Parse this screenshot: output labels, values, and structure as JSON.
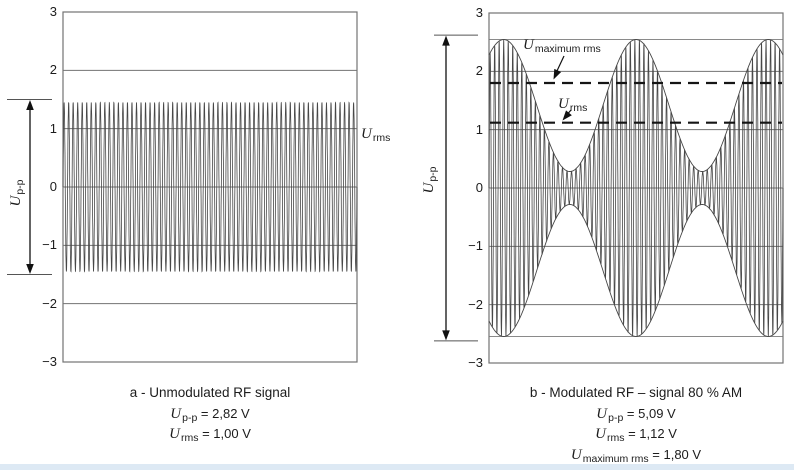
{
  "figure_colors": {
    "background": "#ffffff",
    "waveform": "#474747",
    "gridline": "#737373",
    "tangent_line": "#8a8a8a",
    "dashed_marker": "#151515",
    "arrow": "#111111",
    "text": "#1c1c1c",
    "bottom_strip": "#dde9f4"
  },
  "left_panel": {
    "upp_axis_label": {
      "sym": "U",
      "sub": "p-p"
    },
    "urms_marker": {
      "sym": "U",
      "sub": "rms"
    },
    "caption": "a - Unmodulated RF signal",
    "upp_value": {
      "sym": "U",
      "sub": "p-p",
      "rest": " = 2,82 V"
    },
    "urms_value": {
      "sym": "U",
      "sub": "rms",
      "rest": " = 1,00 V"
    }
  },
  "right_panel": {
    "upp_axis_label": {
      "sym": "U",
      "sub": "p-p"
    },
    "umaxrms_marker": {
      "sym": "U",
      "sub": "maximum rms"
    },
    "urms_marker": {
      "sym": "U",
      "sub": "rms"
    },
    "caption": "b  - Modulated RF – signal 80 % AM",
    "upp_value": {
      "sym": "U",
      "sub": "p-p",
      "rest": " = 5,09 V"
    },
    "urms_value": {
      "sym": "U",
      "sub": "rms",
      "rest": " = 1,12 V"
    },
    "umaxrms_value": {
      "sym": "U",
      "sub": "maximum rms",
      "rest": " = 1,80 V"
    }
  },
  "chart_data": [
    {
      "type": "line",
      "panel": "a",
      "title": "a - Unmodulated RF signal",
      "ylim": [
        -3,
        3
      ],
      "yticks": [
        3,
        2,
        1,
        0,
        -1,
        -2,
        -3
      ],
      "gridline_values": [
        2,
        1,
        0,
        -1,
        -2
      ],
      "grid": true,
      "legend": "none",
      "signal": {
        "kind": "sine",
        "amplitude_V": 1.45,
        "carrier_cycles": 65
      },
      "pp_marker_V": [
        1.5,
        -1.5
      ],
      "rms_level_V": 1.0,
      "measurements": {
        "u_pp_V": 2.82,
        "u_rms_V": 1.0
      },
      "units": "V"
    },
    {
      "type": "line",
      "panel": "b",
      "title": "b - Modulated RF – signal 80 % AM",
      "ylim": [
        -3,
        3
      ],
      "yticks": [
        3,
        2,
        1,
        0,
        -1,
        -2,
        -3
      ],
      "gridline_values": [
        2,
        1,
        0,
        -1,
        -2
      ],
      "grid": true,
      "legend": "none",
      "signal": {
        "kind": "am",
        "carrier_amplitude_V": 1.414,
        "modulation_depth": 0.8,
        "carrier_cycles": 65,
        "modulation_peaks_t": [
          0.05,
          0.5,
          0.95
        ],
        "envelope_max_V": 2.545,
        "envelope_min_V": 0.283
      },
      "pp_marker_V": [
        2.62,
        -2.62
      ],
      "tangent_lines_V": [
        2.545,
        -2.545
      ],
      "dashed_lines_V": [
        1.8,
        1.12
      ],
      "measurements": {
        "u_pp_V": 5.09,
        "u_rms_V": 1.12,
        "u_maximum_rms_V": 1.8
      },
      "units": "V"
    }
  ]
}
